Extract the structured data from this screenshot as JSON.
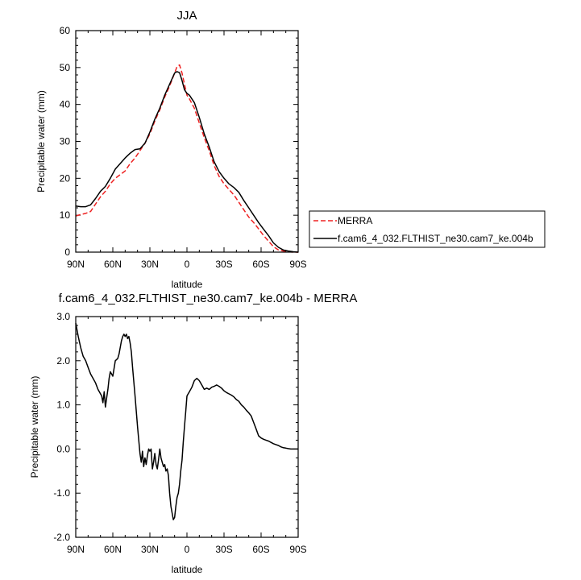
{
  "chart_data": [
    {
      "type": "line",
      "title": "JJA",
      "xlabel": "latitude",
      "ylabel": "Precipitable water (mm)",
      "xlim": [
        90,
        -90
      ],
      "ylim": [
        0,
        60
      ],
      "xticks": [
        90,
        60,
        30,
        0,
        -30,
        -60,
        -90
      ],
      "xtick_labels": [
        "90N",
        "60N",
        "30N",
        "0",
        "30S",
        "60S",
        "90S"
      ],
      "yticks": [
        0,
        10,
        20,
        30,
        40,
        50,
        60
      ],
      "ytick_labels": [
        "0",
        "10",
        "20",
        "30",
        "40",
        "50",
        "60"
      ],
      "legend": {
        "position": "right",
        "entries": [
          {
            "name": "MERRA",
            "color": "#ee2222",
            "style": "dashed"
          },
          {
            "name": "f.cam6_4_032.FLTHIST_ne30.cam7_ke.004b",
            "color": "#000000",
            "style": "solid"
          }
        ]
      },
      "series": [
        {
          "name": "MERRA",
          "color": "#ee2222",
          "style": "dashed",
          "x": [
            90,
            86,
            82,
            78,
            74,
            70,
            66,
            62,
            58,
            54,
            50,
            46,
            42,
            38,
            34,
            30,
            26,
            22,
            18,
            14,
            10,
            8,
            6,
            4,
            2,
            0,
            -2,
            -6,
            -10,
            -14,
            -18,
            -22,
            -26,
            -30,
            -34,
            -38,
            -42,
            -46,
            -50,
            -54,
            -58,
            -62,
            -66,
            -70,
            -74,
            -78,
            -82,
            -86,
            -90
          ],
          "y": [
            9.8,
            10.2,
            10.5,
            11.0,
            13.0,
            15.0,
            16.5,
            18.5,
            20.0,
            21.0,
            22.0,
            24.0,
            25.5,
            27.5,
            29.5,
            32.0,
            35.5,
            38.5,
            42.0,
            45.0,
            48.5,
            50.3,
            50.7,
            48.5,
            45.5,
            42.5,
            41.5,
            39.0,
            35.0,
            31.0,
            27.5,
            23.5,
            20.5,
            18.5,
            17.0,
            15.5,
            13.5,
            11.5,
            9.5,
            8.0,
            6.3,
            4.5,
            3.0,
            1.5,
            0.6,
            0.3,
            0.1,
            0.0,
            0.0
          ]
        },
        {
          "name": "f.cam6_4_032.FLTHIST_ne30.cam7_ke.004b",
          "color": "#000000",
          "style": "solid",
          "x": [
            90,
            86,
            82,
            78,
            74,
            70,
            66,
            62,
            58,
            54,
            50,
            46,
            42,
            38,
            34,
            30,
            26,
            22,
            18,
            14,
            10,
            8,
            6,
            4,
            2,
            0,
            -2,
            -6,
            -10,
            -14,
            -18,
            -22,
            -26,
            -30,
            -34,
            -38,
            -42,
            -46,
            -50,
            -54,
            -58,
            -62,
            -66,
            -70,
            -74,
            -78,
            -82,
            -86,
            -90
          ],
          "y": [
            12.5,
            12.3,
            12.3,
            12.8,
            14.5,
            16.5,
            17.8,
            20.0,
            22.5,
            24.0,
            25.5,
            26.8,
            27.8,
            28.0,
            29.5,
            32.5,
            36.0,
            39.0,
            42.5,
            45.5,
            48.5,
            48.9,
            48.6,
            46.5,
            44.0,
            43.0,
            42.5,
            40.5,
            36.5,
            32.0,
            28.5,
            24.5,
            21.8,
            20.0,
            18.5,
            17.5,
            16.2,
            14.0,
            12.0,
            10.0,
            8.0,
            6.2,
            4.5,
            2.5,
            1.3,
            0.6,
            0.3,
            0.1,
            0.0
          ]
        }
      ]
    },
    {
      "type": "line",
      "title": "f.cam6_4_032.FLTHIST_ne30.cam7_ke.004b - MERRA",
      "xlabel": "latitude",
      "ylabel": "Precipitable water (mm)",
      "xlim": [
        90,
        -90
      ],
      "ylim": [
        -2.0,
        3.0
      ],
      "xticks": [
        90,
        60,
        30,
        0,
        -30,
        -60,
        -90
      ],
      "xtick_labels": [
        "90N",
        "60N",
        "30N",
        "0",
        "30S",
        "60S",
        "90S"
      ],
      "yticks": [
        -2.0,
        -1.0,
        0.0,
        1.0,
        2.0,
        3.0
      ],
      "ytick_labels": [
        "-2.0",
        "-1.0",
        "0.0",
        "1.0",
        "2.0",
        "3.0"
      ],
      "series": [
        {
          "name": "f.cam6_4_032.FLTHIST_ne30.cam7_ke.004b - MERRA",
          "color": "#000000",
          "style": "solid",
          "x": [
            90,
            88,
            86,
            84,
            82,
            80,
            78,
            76,
            74,
            72,
            70,
            69,
            68,
            67,
            66,
            65,
            64,
            63,
            62,
            60,
            58,
            56,
            55,
            54,
            53,
            52,
            51,
            50,
            49,
            48,
            47,
            46,
            45,
            44,
            42,
            40,
            38,
            37,
            36,
            35,
            34,
            33,
            32,
            31,
            30,
            29,
            28,
            27,
            26,
            25,
            24,
            23,
            22,
            21,
            20,
            19,
            18,
            17,
            16,
            15,
            14,
            13,
            12,
            11,
            10,
            9,
            8,
            7,
            6,
            5,
            4,
            3,
            2,
            1,
            0,
            -1,
            -2,
            -4,
            -6,
            -8,
            -10,
            -12,
            -14,
            -16,
            -18,
            -20,
            -22,
            -24,
            -26,
            -28,
            -30,
            -32,
            -34,
            -36,
            -38,
            -40,
            -42,
            -44,
            -46,
            -48,
            -50,
            -52,
            -54,
            -56,
            -58,
            -60,
            -62,
            -64,
            -66,
            -68,
            -70,
            -72,
            -74,
            -76,
            -78,
            -80,
            -82,
            -84,
            -86,
            -88,
            -90
          ],
          "y": [
            2.85,
            2.55,
            2.3,
            2.1,
            2.0,
            1.85,
            1.7,
            1.6,
            1.5,
            1.35,
            1.25,
            1.2,
            1.05,
            1.3,
            0.95,
            1.15,
            1.35,
            1.6,
            1.75,
            1.65,
            2.0,
            2.05,
            2.15,
            2.3,
            2.45,
            2.55,
            2.6,
            2.55,
            2.6,
            2.5,
            2.55,
            2.4,
            2.2,
            1.85,
            1.2,
            0.5,
            -0.1,
            -0.3,
            -0.05,
            -0.4,
            -0.2,
            -0.35,
            -0.15,
            0.0,
            -0.05,
            0.0,
            -0.45,
            -0.3,
            -0.1,
            -0.35,
            -0.45,
            -0.25,
            0.0,
            -0.2,
            -0.3,
            -0.4,
            -0.35,
            -0.5,
            -0.45,
            -0.6,
            -1.0,
            -1.3,
            -1.45,
            -1.6,
            -1.55,
            -1.3,
            -1.1,
            -1.0,
            -0.8,
            -0.5,
            -0.25,
            0.15,
            0.5,
            0.85,
            1.2,
            1.25,
            1.3,
            1.4,
            1.55,
            1.6,
            1.55,
            1.45,
            1.35,
            1.38,
            1.35,
            1.4,
            1.42,
            1.45,
            1.42,
            1.38,
            1.32,
            1.28,
            1.25,
            1.22,
            1.18,
            1.12,
            1.08,
            1.0,
            0.95,
            0.88,
            0.82,
            0.75,
            0.6,
            0.45,
            0.3,
            0.25,
            0.22,
            0.2,
            0.18,
            0.15,
            0.12,
            0.1,
            0.08,
            0.05,
            0.03,
            0.02,
            0.01,
            0.0,
            0.0,
            0.0,
            0.0
          ]
        }
      ]
    }
  ]
}
